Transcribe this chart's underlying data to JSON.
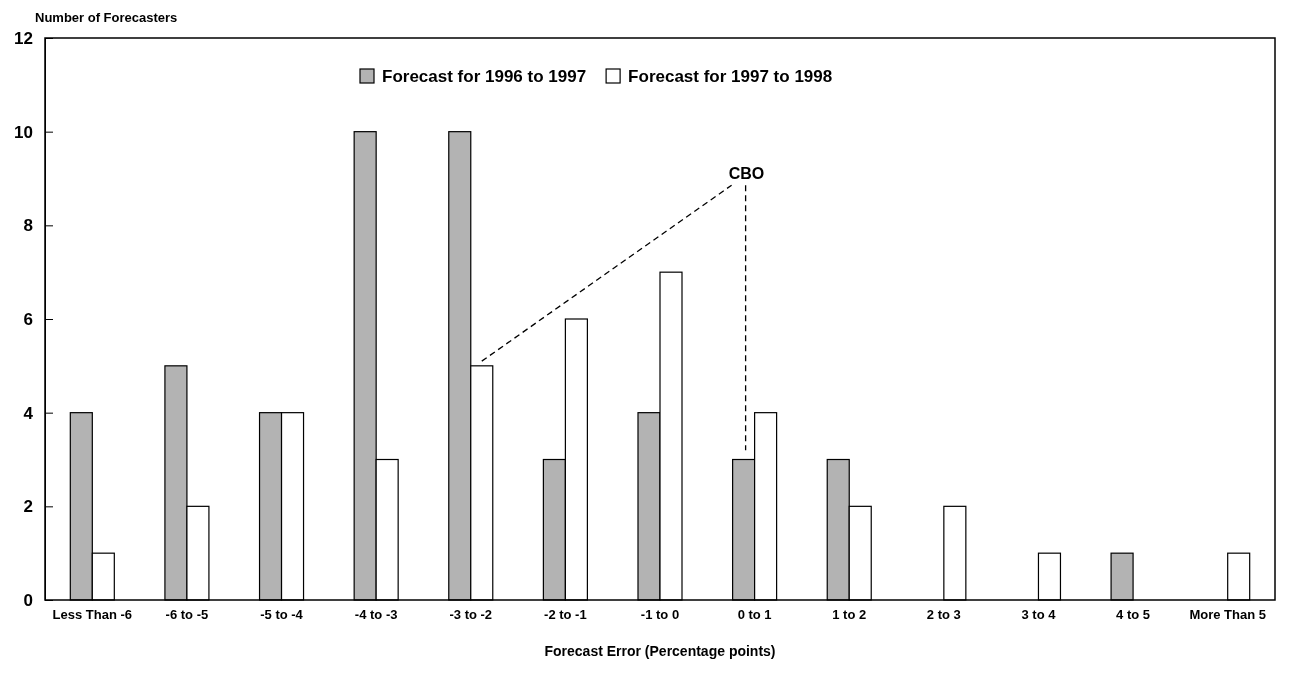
{
  "chart_data": {
    "type": "bar",
    "ylabel": "Number of Forecasters",
    "xlabel": "Forecast Error (Percentage points)",
    "categories": [
      "Less Than -6",
      "-6 to -5",
      "-5 to -4",
      "-4 to -3",
      "-3 to -2",
      "-2 to -1",
      "-1 to 0",
      "0 to 1",
      "1 to 2",
      "2 to 3",
      "3 to 4",
      "4 to 5",
      "More Than 5"
    ],
    "series": [
      {
        "name": "Forecast for 1996 to 1997",
        "color": "#b3b3b3",
        "values": [
          4,
          5,
          4,
          10,
          10,
          3,
          4,
          3,
          3,
          0,
          0,
          1,
          0
        ]
      },
      {
        "name": "Forecast for 1997 to 1998",
        "color": "#ffffff",
        "values": [
          1,
          2,
          4,
          3,
          5,
          6,
          7,
          4,
          2,
          2,
          1,
          0,
          1
        ]
      }
    ],
    "ylim": [
      0,
      12
    ],
    "yticks": [
      0,
      2,
      4,
      6,
      8,
      10,
      12
    ],
    "grid": false,
    "legend": "top",
    "annotations": [
      "CBO"
    ]
  }
}
